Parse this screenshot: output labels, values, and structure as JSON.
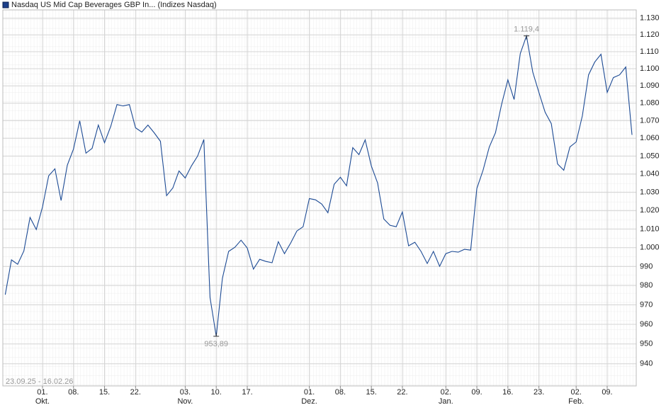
{
  "chart_data": {
    "type": "line",
    "title": "Nasdaq US Mid Cap Beverages GBP In... (Indizes Nasdaq)",
    "period": "23.09.25 - 16.02.26",
    "log_scale": true,
    "grid": true,
    "color": "#1c4a94",
    "categories": [
      null,
      null,
      null,
      null,
      null,
      null,
      "01.",
      null,
      null,
      null,
      null,
      "08.",
      null,
      null,
      null,
      null,
      "15.",
      null,
      null,
      null,
      null,
      "22.",
      null,
      null,
      null,
      null,
      null,
      null,
      null,
      "03.",
      null,
      null,
      null,
      null,
      "10.",
      null,
      null,
      null,
      null,
      "17.",
      null,
      null,
      null,
      null,
      null,
      null,
      null,
      null,
      null,
      "01.",
      null,
      null,
      null,
      null,
      "08.",
      null,
      null,
      null,
      null,
      "15.",
      null,
      null,
      null,
      null,
      "22.",
      null,
      null,
      null,
      null,
      null,
      null,
      "02.",
      null,
      null,
      null,
      null,
      "09.",
      null,
      null,
      null,
      null,
      "16.",
      null,
      null,
      null,
      null,
      "23.",
      null,
      null,
      null,
      null,
      null,
      "02.",
      null,
      null,
      null,
      null,
      "09.",
      null,
      null,
      null,
      null
    ],
    "months": [
      null,
      null,
      null,
      null,
      null,
      null,
      "Okt.",
      null,
      null,
      null,
      null,
      null,
      null,
      null,
      null,
      null,
      null,
      null,
      null,
      null,
      null,
      null,
      null,
      null,
      null,
      null,
      null,
      null,
      null,
      "Nov.",
      null,
      null,
      null,
      null,
      null,
      null,
      null,
      null,
      null,
      null,
      null,
      null,
      null,
      null,
      null,
      null,
      null,
      null,
      null,
      "Dez.",
      null,
      null,
      null,
      null,
      null,
      null,
      null,
      null,
      null,
      null,
      null,
      null,
      null,
      null,
      null,
      null,
      null,
      null,
      null,
      null,
      null,
      "Jan.",
      null,
      null,
      null,
      null,
      null,
      null,
      null,
      null,
      null,
      null,
      null,
      null,
      null,
      null,
      null,
      null,
      null,
      null,
      null,
      null,
      "Feb.",
      null,
      null,
      null,
      null,
      null,
      null,
      null,
      null,
      null
    ],
    "values": [
      975.3,
      993.5,
      991.2,
      998.3,
      1016.2,
      1009.7,
      1021.9,
      1039.0,
      1042.9,
      1025.4,
      1044.9,
      1053.9,
      1069.9,
      1051.6,
      1054.3,
      1067.5,
      1057.5,
      1066.7,
      1079.2,
      1078.4,
      1079.2,
      1065.9,
      1063.5,
      1067.5,
      1063.1,
      1058.3,
      1028.1,
      1032.3,
      1041.7,
      1037.8,
      1044.5,
      1050.0,
      1059.3,
      973.9,
      953.89,
      983.8,
      998.0,
      1000.2,
      1004.0,
      999.8,
      988.6,
      993.8,
      992.7,
      992.0,
      1003.2,
      996.8,
      1002.5,
      1008.9,
      1011.2,
      1026.5,
      1025.8,
      1023.5,
      1018.8,
      1034.3,
      1038.2,
      1033.5,
      1054.7,
      1050.8,
      1059.1,
      1044.5,
      1035.1,
      1015.4,
      1012.0,
      1011.2,
      1019.2,
      1001.0,
      1002.9,
      998.0,
      991.6,
      998.0,
      990.1,
      996.8,
      998.0,
      997.6,
      999.1,
      998.7,
      1032.0,
      1042.1,
      1055.1,
      1063.1,
      1079.6,
      1093.5,
      1082.1,
      1108.9,
      1119.4,
      1098.1,
      1086.2,
      1074.8,
      1068.3,
      1045.6,
      1042.1,
      1055.1,
      1057.9,
      1072.7,
      1096.4,
      1103.9,
      1108.5,
      1086.2,
      1094.8,
      1096.4,
      1101.0,
      1061.9
    ],
    "value_labels": [
      null,
      null,
      null,
      null,
      null,
      null,
      null,
      null,
      null,
      null,
      null,
      null,
      null,
      null,
      null,
      null,
      null,
      null,
      null,
      null,
      null,
      null,
      null,
      null,
      null,
      null,
      null,
      null,
      null,
      null,
      null,
      null,
      null,
      null,
      "953,89",
      null,
      null,
      null,
      null,
      null,
      null,
      null,
      null,
      null,
      null,
      null,
      null,
      null,
      null,
      null,
      null,
      null,
      null,
      null,
      null,
      null,
      null,
      null,
      null,
      null,
      null,
      null,
      null,
      null,
      null,
      null,
      null,
      null,
      null,
      null,
      null,
      null,
      null,
      null,
      null,
      null,
      null,
      null,
      null,
      null,
      null,
      null,
      null,
      null,
      "1.119,4",
      null,
      null,
      null,
      null,
      null,
      null,
      null,
      null,
      null,
      null,
      null,
      null,
      null,
      null,
      null,
      null,
      null
    ],
    "ylim": [
      929,
      1135
    ],
    "yticks": [
      940,
      950,
      960,
      970,
      980,
      990,
      {
        "value": 1000,
        "label": "1.000"
      },
      {
        "value": 1010,
        "label": "1.010"
      },
      {
        "value": 1020,
        "label": "1.020"
      },
      {
        "value": 1030,
        "label": "1.030"
      },
      {
        "value": 1040,
        "label": "1.040"
      },
      {
        "value": 1050,
        "label": "1.050"
      },
      {
        "value": 1060,
        "label": "1.060"
      },
      {
        "value": 1070,
        "label": "1.070"
      },
      {
        "value": 1080,
        "label": "1.080"
      },
      {
        "value": 1090,
        "label": "1.090"
      },
      {
        "value": 1100,
        "label": "1.100"
      },
      {
        "value": 1110,
        "label": "1.110"
      },
      {
        "value": 1120,
        "label": "1.120"
      },
      {
        "value": 1130,
        "label": "1.130"
      }
    ]
  }
}
